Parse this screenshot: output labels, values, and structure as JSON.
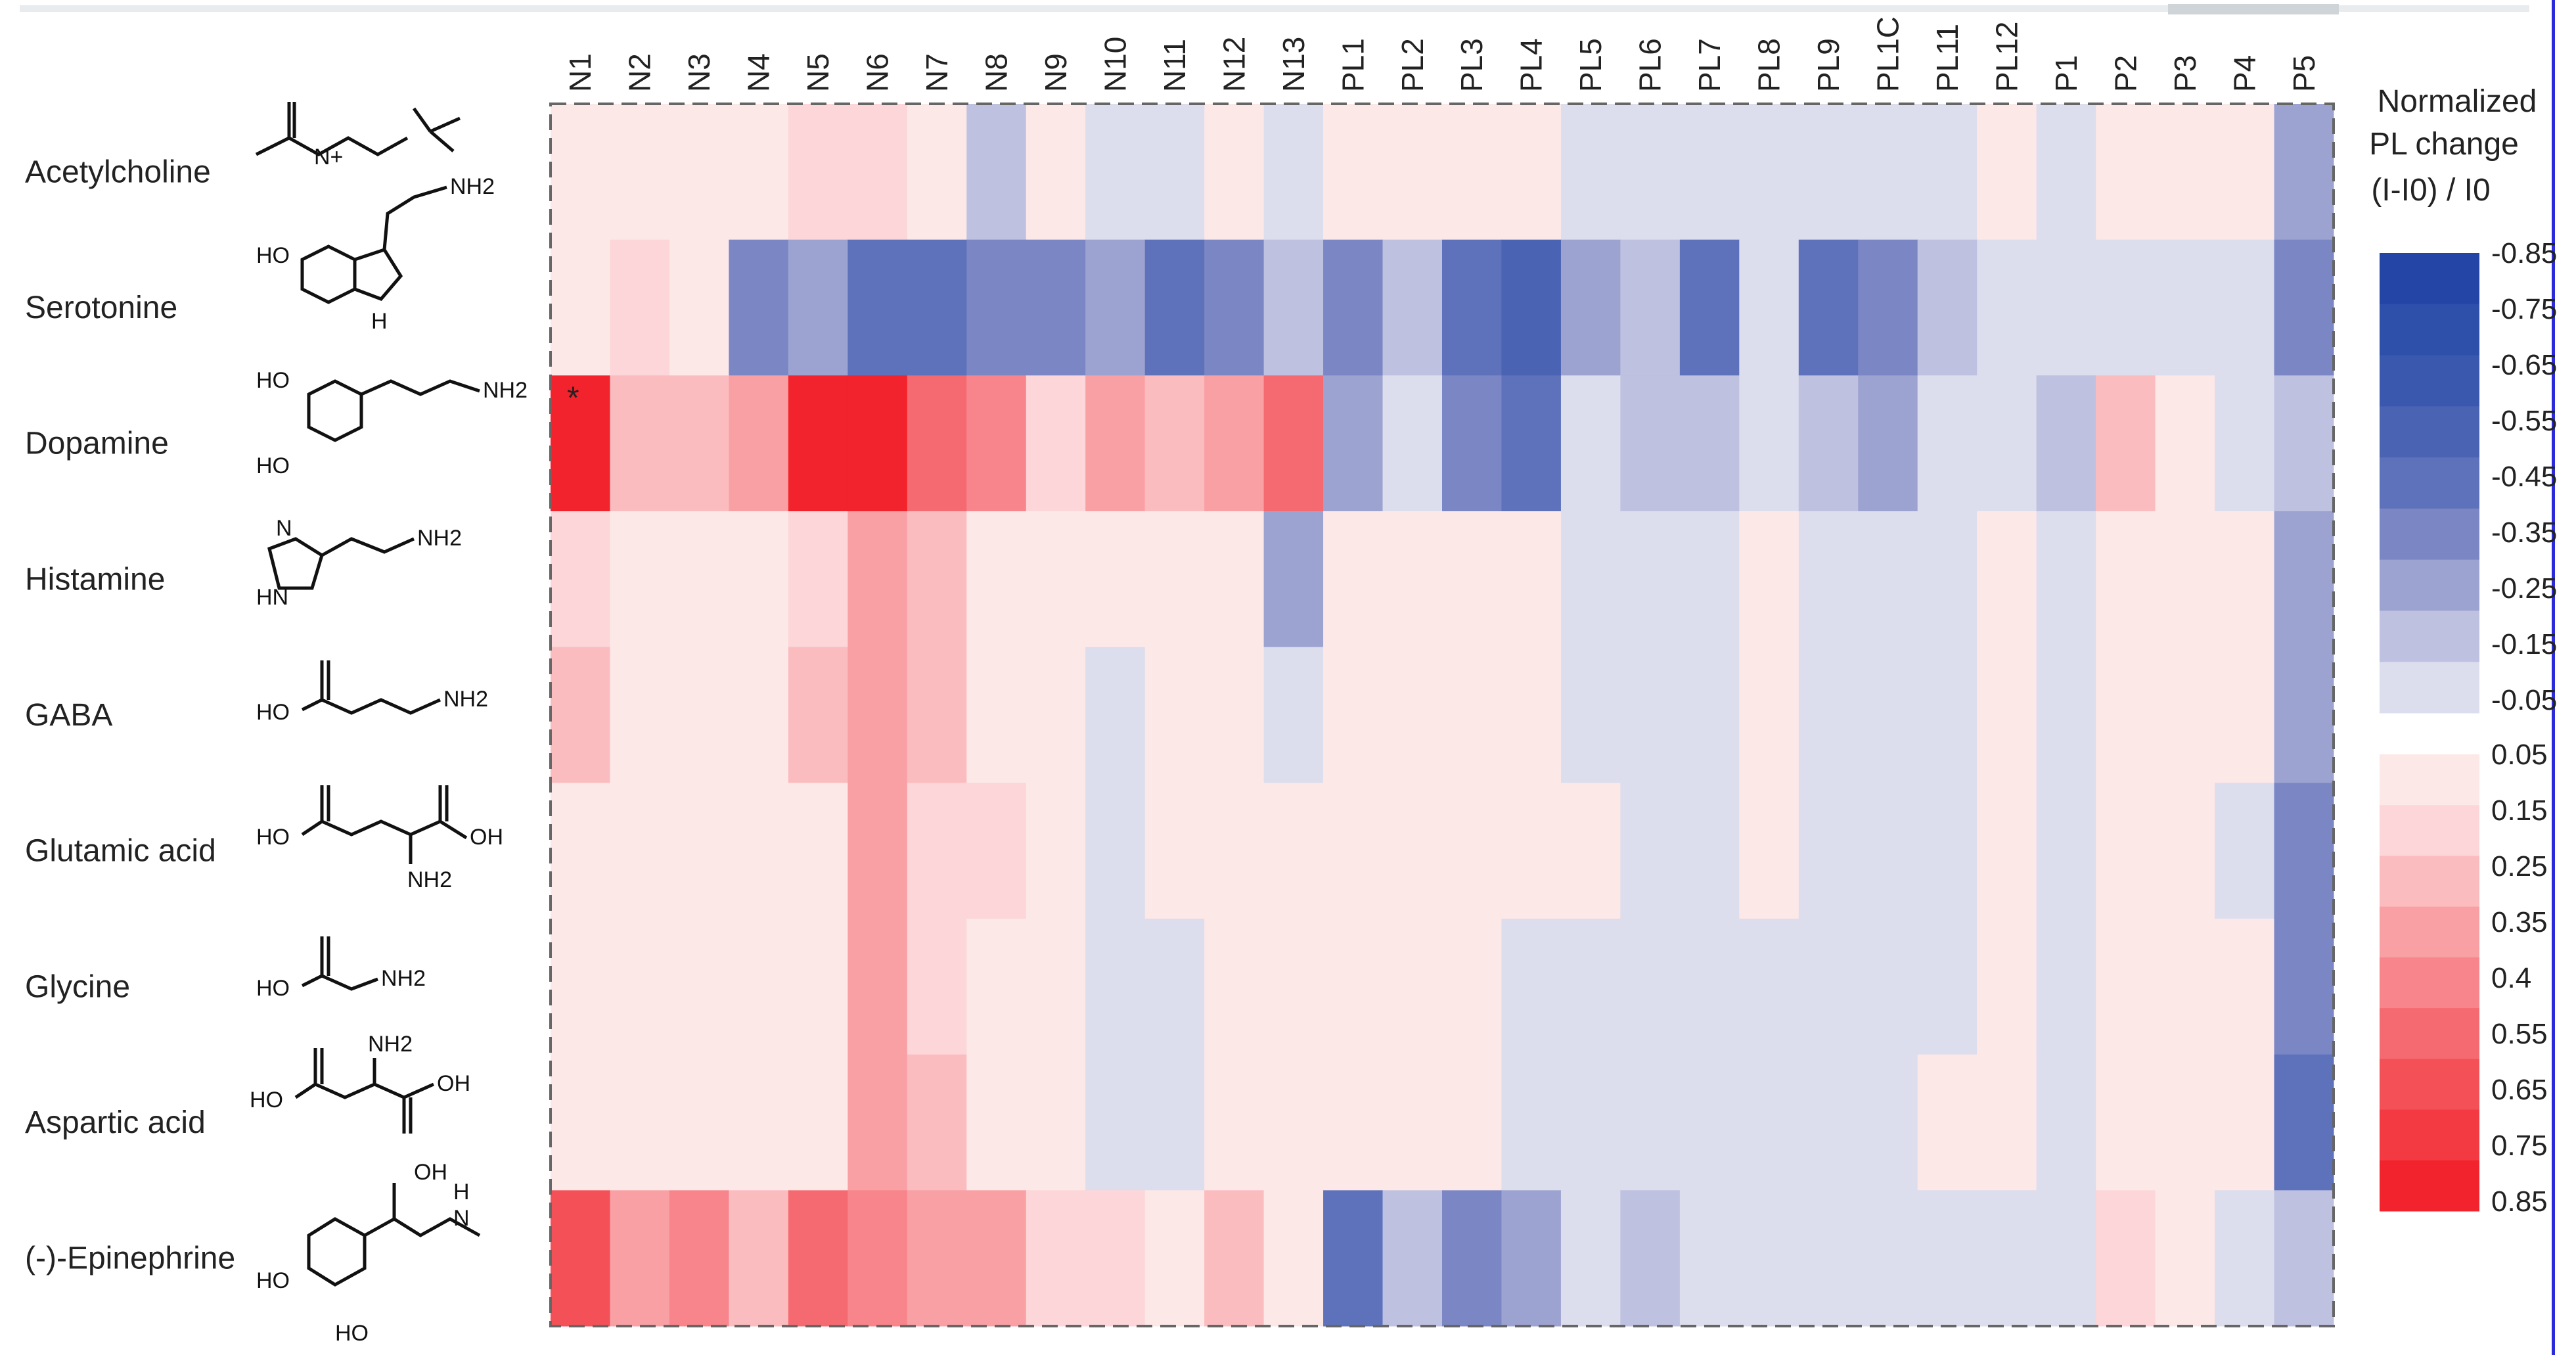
{
  "chart_data": {
    "type": "heatmap",
    "columns": [
      "N1",
      "N2",
      "N3",
      "N4",
      "N5",
      "N6",
      "N7",
      "N8",
      "N9",
      "N10",
      "N11",
      "N12",
      "N13",
      "PL1",
      "PL2",
      "PL3",
      "PL4",
      "PL5",
      "PL6",
      "PL7",
      "PL8",
      "PL9",
      "PL1C",
      "PL11",
      "PL12",
      "P1",
      "P2",
      "P3",
      "P4",
      "P5"
    ],
    "rows": [
      "Acetylcholine",
      "Serotonine",
      "Dopamine",
      "Histamine",
      "GABA",
      "Glutamic acid",
      "Glycine",
      "Aspartic acid",
      "(-)-Epinephrine"
    ],
    "values": [
      [
        0.05,
        0.05,
        0.05,
        0.05,
        0.15,
        0.15,
        0.05,
        -0.15,
        0.05,
        -0.05,
        -0.05,
        0.05,
        -0.05,
        0.05,
        0.05,
        0.05,
        0.05,
        -0.05,
        -0.05,
        -0.05,
        -0.05,
        -0.05,
        -0.05,
        -0.05,
        0.05,
        -0.05,
        0.05,
        0.05,
        0.05,
        -0.25
      ],
      [
        0.05,
        0.15,
        0.05,
        -0.35,
        -0.25,
        -0.45,
        -0.45,
        -0.35,
        -0.35,
        -0.25,
        -0.45,
        -0.35,
        -0.15,
        -0.35,
        -0.15,
        -0.45,
        -0.55,
        -0.25,
        -0.15,
        -0.45,
        -0.05,
        -0.45,
        -0.35,
        -0.15,
        -0.05,
        -0.05,
        -0.05,
        -0.05,
        -0.05,
        -0.35
      ],
      [
        0.85,
        0.25,
        0.25,
        0.35,
        0.85,
        0.85,
        0.55,
        0.4,
        0.15,
        0.35,
        0.25,
        0.35,
        0.55,
        -0.25,
        -0.05,
        -0.35,
        -0.45,
        -0.05,
        -0.15,
        -0.15,
        -0.05,
        -0.15,
        -0.25,
        -0.05,
        -0.05,
        -0.15,
        0.25,
        0.05,
        -0.05,
        -0.15
      ],
      [
        0.15,
        0.05,
        0.05,
        0.05,
        0.15,
        0.35,
        0.25,
        0.05,
        0.05,
        0.05,
        0.05,
        0.05,
        -0.25,
        0.05,
        0.05,
        0.05,
        0.05,
        -0.05,
        -0.05,
        -0.05,
        0.05,
        -0.05,
        -0.05,
        -0.05,
        0.05,
        -0.05,
        0.05,
        0.05,
        0.05,
        -0.25
      ],
      [
        0.25,
        0.05,
        0.05,
        0.05,
        0.25,
        0.35,
        0.25,
        0.05,
        0.05,
        -0.05,
        0.05,
        0.05,
        -0.05,
        0.05,
        0.05,
        0.05,
        0.05,
        -0.05,
        -0.05,
        -0.05,
        0.05,
        -0.05,
        -0.05,
        -0.05,
        0.05,
        -0.05,
        0.05,
        0.05,
        0.05,
        -0.25
      ],
      [
        0.05,
        0.05,
        0.05,
        0.05,
        0.05,
        0.35,
        0.15,
        0.15,
        0.05,
        -0.05,
        0.05,
        0.05,
        0.05,
        0.05,
        0.05,
        0.05,
        0.05,
        0.05,
        -0.05,
        -0.05,
        0.05,
        -0.05,
        -0.05,
        -0.05,
        0.05,
        -0.05,
        0.05,
        0.05,
        -0.05,
        -0.35
      ],
      [
        0.05,
        0.05,
        0.05,
        0.05,
        0.05,
        0.35,
        0.15,
        0.05,
        0.05,
        -0.05,
        -0.05,
        0.05,
        0.05,
        0.05,
        0.05,
        0.05,
        -0.05,
        -0.05,
        -0.05,
        -0.05,
        -0.05,
        -0.05,
        -0.05,
        -0.05,
        0.05,
        -0.05,
        0.05,
        0.05,
        0.05,
        -0.35
      ],
      [
        0.05,
        0.05,
        0.05,
        0.05,
        0.05,
        0.35,
        0.25,
        0.05,
        0.05,
        -0.05,
        -0.05,
        0.05,
        0.05,
        0.05,
        0.05,
        0.05,
        -0.05,
        -0.05,
        -0.05,
        -0.05,
        -0.05,
        -0.05,
        -0.05,
        0.05,
        0.05,
        -0.05,
        0.05,
        0.05,
        0.05,
        -0.45
      ],
      [
        0.65,
        0.35,
        0.4,
        0.25,
        0.55,
        0.4,
        0.35,
        0.35,
        0.15,
        0.15,
        0.05,
        0.25,
        0.05,
        -0.45,
        -0.15,
        -0.35,
        -0.25,
        -0.05,
        -0.15,
        -0.05,
        -0.05,
        -0.05,
        -0.05,
        -0.05,
        -0.05,
        -0.05,
        0.15,
        0.05,
        -0.05,
        -0.15
      ]
    ],
    "annotations": [
      {
        "row": "Dopamine",
        "column": "N1",
        "text": "*"
      }
    ],
    "legend": {
      "title_lines": [
        "Normalized",
        "PL change"
      ],
      "formula": "(I-I0) / I0",
      "negative_ticks": [
        "-0.85",
        "-0.75",
        "-0.65",
        "-0.55",
        "-0.45",
        "-0.35",
        "-0.25",
        "-0.15",
        "-0.05"
      ],
      "positive_ticks": [
        "0.05",
        "0.15",
        "0.25",
        "0.35",
        "0.4",
        "0.55",
        "0.65",
        "0.75",
        "0.85"
      ],
      "negative_colors": [
        "#2445a6",
        "#2e4faa",
        "#3a58ae",
        "#4a63b3",
        "#5d72bb",
        "#7b86c4",
        "#9da3d1",
        "#bfc1e0",
        "#dcdded"
      ],
      "positive_colors": [
        "#fde8e8",
        "#fcd6d8",
        "#fbbcc0",
        "#f9a0a5",
        "#f7858b",
        "#f56a71",
        "#f45058",
        "#f33a42",
        "#f2232c"
      ],
      "position": "right"
    },
    "grid": false
  },
  "molecules": {
    "acetylcholine": [
      "N+"
    ],
    "serotonine": [
      "HO",
      "NH2",
      "N",
      "H"
    ],
    "dopamine": [
      "HO",
      "HO",
      "NH2"
    ],
    "histamine": [
      "N",
      "HN",
      "NH2"
    ],
    "gaba": [
      "HO",
      "NH2"
    ],
    "glutamic": [
      "HO",
      "OH",
      "NH2"
    ],
    "glycine": [
      "HO",
      "NH2"
    ],
    "aspartic": [
      "HO",
      "NH2",
      "OH"
    ],
    "epinephrine": [
      "OH",
      "HO",
      "HO",
      "H",
      "N"
    ]
  }
}
